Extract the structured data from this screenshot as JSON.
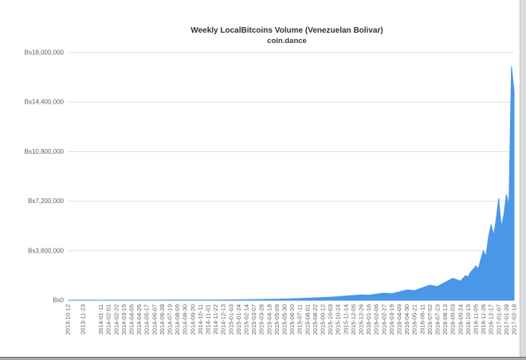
{
  "chart_data": {
    "type": "area",
    "title": "Weekly LocalBitcoins Volume (Venezuelan Bolivar)",
    "subtitle": "coin.dance",
    "xlabel": "",
    "ylabel": "",
    "legend": "none",
    "grid": "horizontal",
    "ylim": [
      0,
      18000000
    ],
    "yticks": [
      0,
      3600000,
      7200000,
      10800000,
      14400000,
      18000000
    ],
    "ytick_labels": [
      "Bs0",
      "Bs3,600,000",
      "Bs7,200,000",
      "Bs10,800,000",
      "Bs14,400,000",
      "Bs18,000,000"
    ],
    "x_range": [
      "2013-10-12",
      "2017-02-18"
    ],
    "x_labels": [
      "2013-10-12",
      "2013-11-23",
      "2014-01-11",
      "2014-02-01",
      "2014-02-22",
      "2014-03-15",
      "2014-04-05",
      "2014-04-26",
      "2014-05-17",
      "2014-06-07",
      "2014-06-28",
      "2014-07-19",
      "2014-08-09",
      "2014-08-30",
      "2014-09-20",
      "2014-10-11",
      "2014-11-01",
      "2014-11-22",
      "2014-12-13",
      "2015-01-03",
      "2015-01-24",
      "2015-02-14",
      "2015-03-07",
      "2015-03-28",
      "2015-04-18",
      "2015-05-09",
      "2015-05-30",
      "2015-06-20",
      "2015-07-11",
      "2015-08-01",
      "2015-08-22",
      "2015-09-12",
      "2015-10-03",
      "2015-10-24",
      "2015-11-14",
      "2015-12-05",
      "2015-12-26",
      "2016-01-16",
      "2016-02-06",
      "2016-02-27",
      "2016-03-19",
      "2016-04-09",
      "2016-04-30",
      "2016-05-21",
      "2016-06-11",
      "2016-07-02",
      "2016-07-23",
      "2016-08-13",
      "2016-09-03",
      "2016-09-24",
      "2016-10-15",
      "2016-11-05",
      "2016-11-26",
      "2016-12-17",
      "2017-01-07",
      "2017-01-28",
      "2017-02-18"
    ],
    "x": [
      "2013-10-12",
      "2013-11-23",
      "2014-01-11",
      "2014-02-01",
      "2014-02-22",
      "2014-03-15",
      "2014-04-05",
      "2014-04-26",
      "2014-05-17",
      "2014-06-07",
      "2014-06-28",
      "2014-07-19",
      "2014-08-09",
      "2014-08-30",
      "2014-09-20",
      "2014-10-11",
      "2014-11-01",
      "2014-11-22",
      "2014-12-13",
      "2015-01-03",
      "2015-01-24",
      "2015-02-14",
      "2015-03-07",
      "2015-03-28",
      "2015-04-18",
      "2015-05-09",
      "2015-05-30",
      "2015-06-20",
      "2015-07-11",
      "2015-08-01",
      "2015-08-22",
      "2015-09-12",
      "2015-10-03",
      "2015-10-24",
      "2015-11-14",
      "2015-12-05",
      "2015-12-26",
      "2016-01-16",
      "2016-02-06",
      "2016-02-27",
      "2016-03-19",
      "2016-04-09",
      "2016-04-30",
      "2016-05-21",
      "2016-06-11",
      "2016-07-02",
      "2016-07-23",
      "2016-08-13",
      "2016-09-03",
      "2016-09-24",
      "2016-10-08",
      "2016-10-15",
      "2016-10-22",
      "2016-10-29",
      "2016-11-05",
      "2016-11-12",
      "2016-11-19",
      "2016-11-26",
      "2016-12-03",
      "2016-12-10",
      "2016-12-17",
      "2016-12-24",
      "2016-12-31",
      "2017-01-07",
      "2017-01-14",
      "2017-01-21",
      "2017-01-28",
      "2017-02-04",
      "2017-02-11",
      "2017-02-18"
    ],
    "series": [
      {
        "name": "volume",
        "values": [
          1500,
          3000,
          2500,
          4000,
          3500,
          5000,
          4500,
          6000,
          7000,
          6500,
          8000,
          10000,
          9000,
          12000,
          14000,
          13000,
          17000,
          21000,
          25000,
          29000,
          34000,
          42000,
          50000,
          58000,
          68000,
          80000,
          94000,
          110000,
          128000,
          150000,
          172000,
          200000,
          228000,
          260000,
          300000,
          345000,
          395000,
          370000,
          450000,
          520000,
          480000,
          610000,
          760000,
          700000,
          900000,
          1100000,
          1000000,
          1300000,
          1600000,
          1400000,
          1800000,
          1700000,
          2050000,
          2250000,
          2500000,
          2300000,
          3000000,
          3600000,
          3200000,
          4600000,
          5500000,
          4700000,
          5900000,
          7400000,
          5300000,
          6200000,
          7700000,
          6900000,
          17000000,
          15200000
        ]
      }
    ],
    "colors": {
      "area": "#4a97e8",
      "grid": "#e0e0e0",
      "axis_text": "#606060",
      "title_text": "#333333"
    }
  }
}
